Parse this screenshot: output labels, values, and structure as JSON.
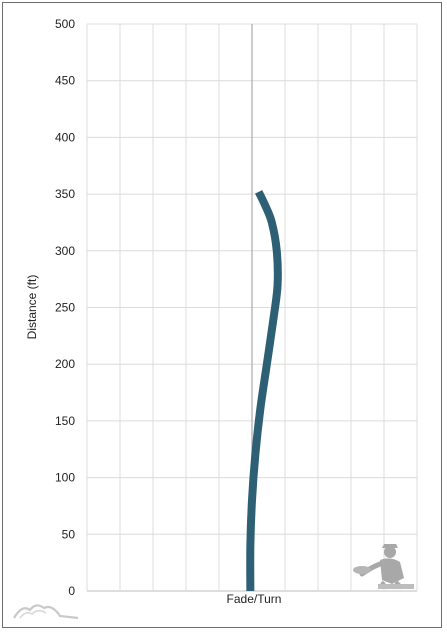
{
  "chart_data": {
    "type": "line",
    "title": "",
    "xlabel": "Fade/Turn",
    "ylabel": "Distance (ft)",
    "ylim": [
      0,
      500
    ],
    "yticks": [
      0,
      50,
      100,
      150,
      200,
      250,
      300,
      350,
      400,
      450,
      500
    ],
    "xlim": [
      -20,
      20
    ],
    "x_gridlines": [
      -20,
      -16,
      -12,
      -8,
      -4,
      0,
      4,
      8,
      12,
      16,
      20
    ],
    "grid": true,
    "legend": "none",
    "series": [
      {
        "color": "#2d6075",
        "points": [
          {
            "x": -0.2,
            "y": 0
          },
          {
            "x": -0.2,
            "y": 40
          },
          {
            "x": 0.0,
            "y": 80
          },
          {
            "x": 0.4,
            "y": 120
          },
          {
            "x": 1.0,
            "y": 160
          },
          {
            "x": 1.8,
            "y": 200
          },
          {
            "x": 2.6,
            "y": 240
          },
          {
            "x": 3.1,
            "y": 270
          },
          {
            "x": 3.0,
            "y": 300
          },
          {
            "x": 2.4,
            "y": 325
          },
          {
            "x": 1.6,
            "y": 340
          },
          {
            "x": 0.8,
            "y": 352
          }
        ]
      }
    ]
  },
  "logos": {
    "left_icon": "flight-chart-logo-icon",
    "right_icon": "disc-thrower-logo-icon"
  }
}
